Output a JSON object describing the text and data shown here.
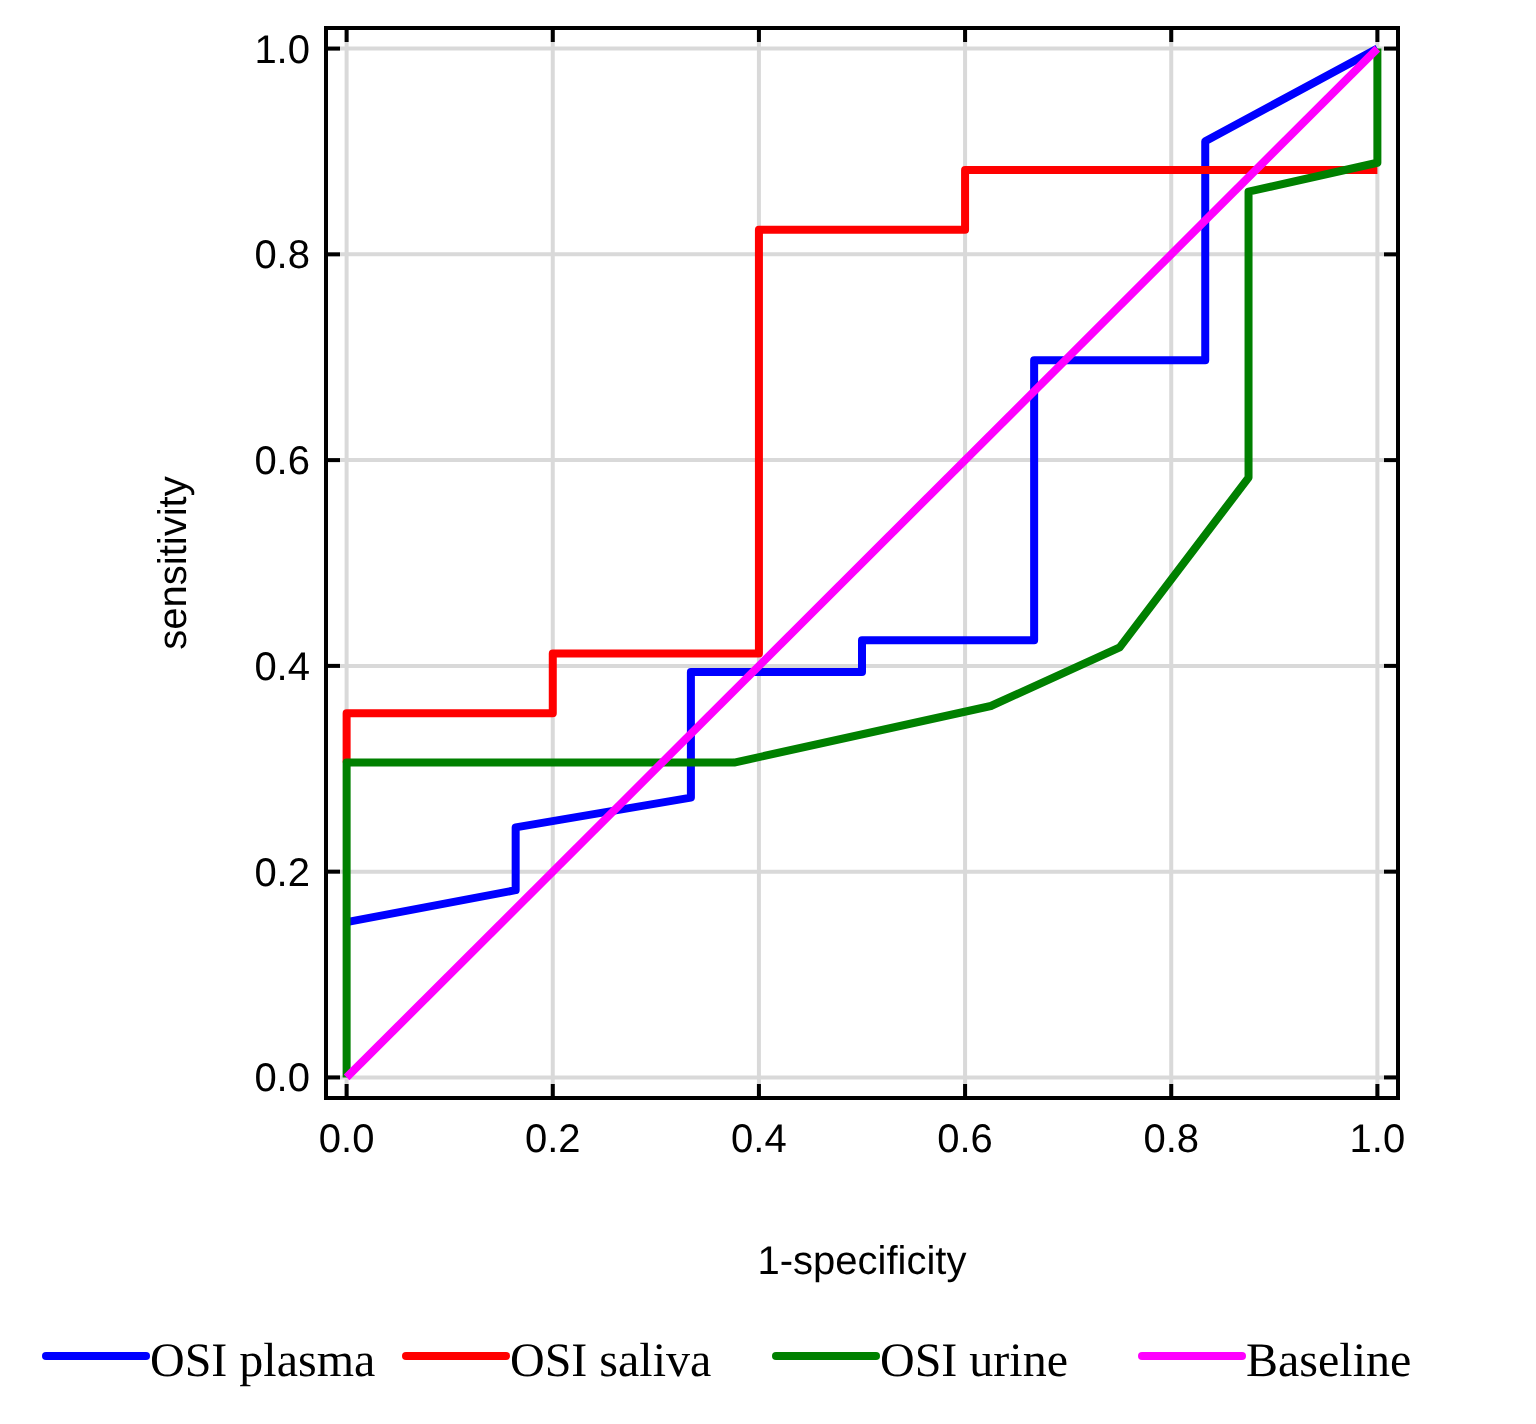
{
  "chart_data": {
    "type": "line",
    "xlabel": "1-specificity",
    "ylabel": "sensitivity",
    "xlim": [
      -0.02,
      1.02
    ],
    "ylim": [
      -0.02,
      1.02
    ],
    "xticks": [
      {
        "value": 0,
        "label": "0.0"
      },
      {
        "value": 0.2,
        "label": "0.2"
      },
      {
        "value": 0.4,
        "label": "0.4"
      },
      {
        "value": 0.6,
        "label": "0.6"
      },
      {
        "value": 0.8,
        "label": "0.8"
      },
      {
        "value": 1,
        "label": "1.0"
      }
    ],
    "yticks": [
      {
        "value": 0,
        "label": "0.0"
      },
      {
        "value": 0.2,
        "label": "0.2"
      },
      {
        "value": 0.4,
        "label": "0.4"
      },
      {
        "value": 0.6,
        "label": "0.6"
      },
      {
        "value": 0.8,
        "label": "0.8"
      },
      {
        "value": 1,
        "label": "1.0"
      }
    ],
    "grid": true,
    "legend": "bottom",
    "marker": "none",
    "line_style": "solid",
    "series": [
      {
        "name": "OSI plasma",
        "color": "#0000ff",
        "x": [
          0,
          0.164,
          0.164,
          0.334,
          0.334,
          0.5,
          0.5,
          0.667,
          0.667,
          0.833,
          0.833,
          1
        ],
        "values": [
          0.151,
          0.182,
          0.243,
          0.272,
          0.394,
          0.394,
          0.425,
          0.425,
          0.697,
          0.697,
          0.91,
          1
        ]
      },
      {
        "name": "OSI saliva",
        "color": "#ff0000",
        "x": [
          0,
          0,
          0.2,
          0.2,
          0.4,
          0.4,
          0.6,
          0.6,
          1
        ],
        "values": [
          0.306,
          0.354,
          0.354,
          0.412,
          0.412,
          0.824,
          0.824,
          0.882,
          0.882
        ]
      },
      {
        "name": "OSI urine",
        "color": "#008000",
        "x": [
          0,
          0,
          0.376,
          0.625,
          0.75,
          0.875,
          0.875,
          1,
          1
        ],
        "values": [
          0,
          0.306,
          0.306,
          0.361,
          0.418,
          0.583,
          0.861,
          0.889,
          1
        ]
      },
      {
        "name": "Baseline",
        "color": "#ff00ff",
        "x": [
          0,
          1
        ],
        "values": [
          0,
          1
        ]
      }
    ]
  }
}
